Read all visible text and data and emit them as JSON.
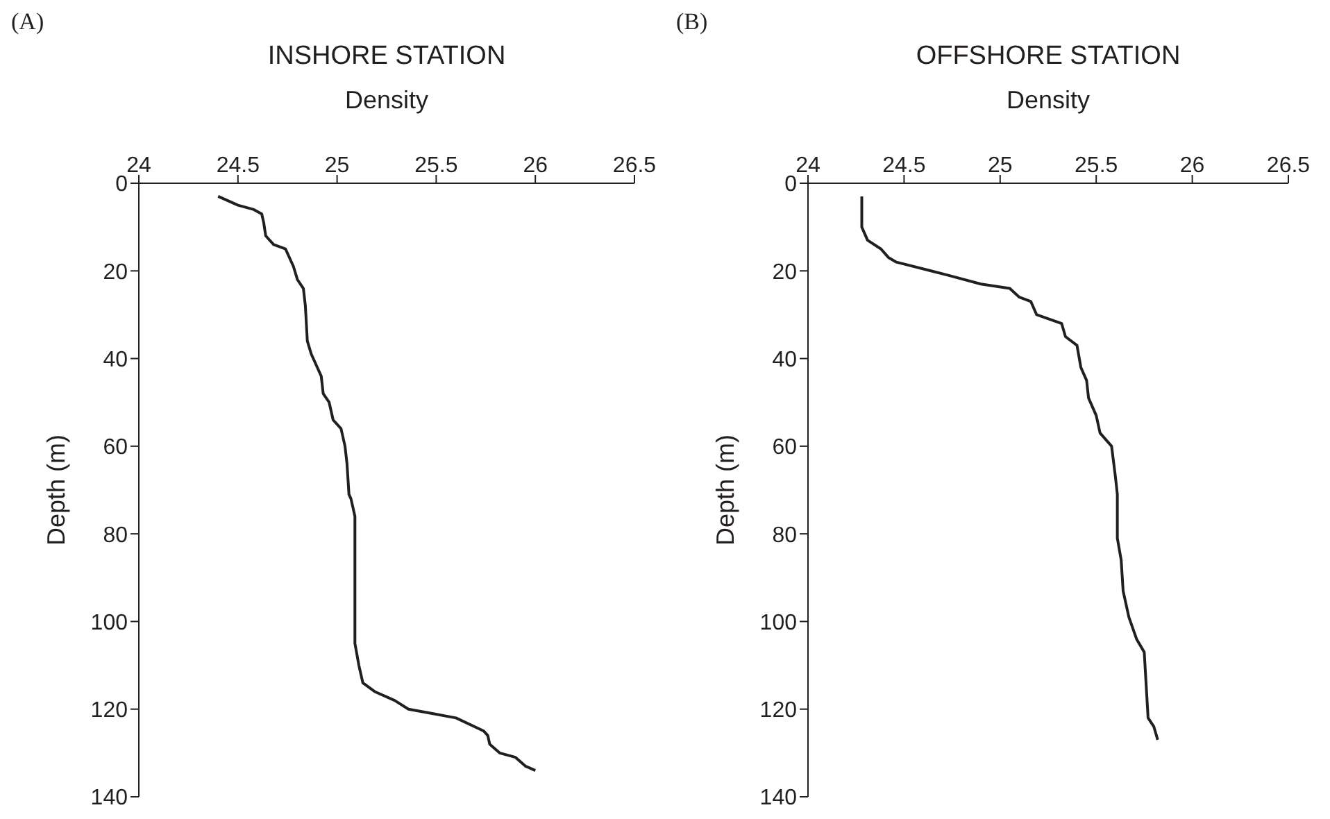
{
  "chart_data": [
    {
      "type": "line",
      "annotations": [
        "(A)"
      ],
      "title": "INSHORE STATION",
      "xlabel": "Density",
      "ylabel": "Depth (m)",
      "xlim": [
        24,
        26.5
      ],
      "xticks": [
        24,
        24.5,
        25,
        25.5,
        26,
        26.5
      ],
      "ylim": [
        140,
        0
      ],
      "yticks": [
        0,
        20,
        40,
        60,
        80,
        100,
        120,
        140
      ],
      "series": [
        {
          "color": "#231f20",
          "x": [
            24.4,
            24.5,
            24.58,
            24.62,
            24.63,
            24.64,
            24.68,
            24.74,
            24.78,
            24.8,
            24.83,
            24.84,
            24.85,
            24.87,
            24.9,
            24.92,
            24.93,
            24.96,
            24.98,
            25.02,
            25.04,
            25.05,
            25.06,
            25.07,
            25.09,
            25.09,
            25.09,
            25.11,
            25.13,
            25.19,
            25.29,
            25.36,
            25.48,
            25.6,
            25.74,
            25.76,
            25.77,
            25.82,
            25.9,
            25.95,
            26.0
          ],
          "values": [
            3,
            5,
            6,
            7,
            9,
            12,
            14,
            15,
            19,
            22,
            24,
            28,
            36,
            39,
            42,
            44,
            48,
            50,
            54,
            56,
            60,
            64,
            71,
            72,
            76,
            86,
            105,
            110,
            114,
            116,
            118,
            120,
            121,
            122,
            125,
            126,
            128,
            130,
            131,
            133,
            134
          ]
        }
      ]
    },
    {
      "type": "line",
      "annotations": [
        "(B)"
      ],
      "title": "OFFSHORE STATION",
      "xlabel": "Density",
      "ylabel": "Depth (m)",
      "xlim": [
        24,
        26.5
      ],
      "xticks": [
        24,
        24.5,
        25,
        25.5,
        26,
        26.5
      ],
      "ylim": [
        140,
        0
      ],
      "yticks": [
        0,
        20,
        40,
        60,
        80,
        100,
        120,
        140
      ],
      "series": [
        {
          "color": "#231f20",
          "x": [
            24.28,
            24.28,
            24.31,
            24.38,
            24.42,
            24.46,
            24.64,
            24.73,
            24.9,
            25.05,
            25.1,
            25.16,
            25.19,
            25.32,
            25.34,
            25.4,
            25.42,
            25.45,
            25.46,
            25.5,
            25.52,
            25.58,
            25.6,
            25.61,
            25.61,
            25.63,
            25.64,
            25.67,
            25.71,
            25.75,
            25.77,
            25.8,
            25.82
          ],
          "values": [
            3,
            10,
            13,
            15,
            17,
            18,
            20,
            21,
            23,
            24,
            26,
            27,
            30,
            32,
            35,
            37,
            42,
            45,
            49,
            53,
            57,
            60,
            67,
            71,
            81,
            86,
            93,
            99,
            104,
            107,
            122,
            124,
            127
          ]
        }
      ]
    }
  ]
}
